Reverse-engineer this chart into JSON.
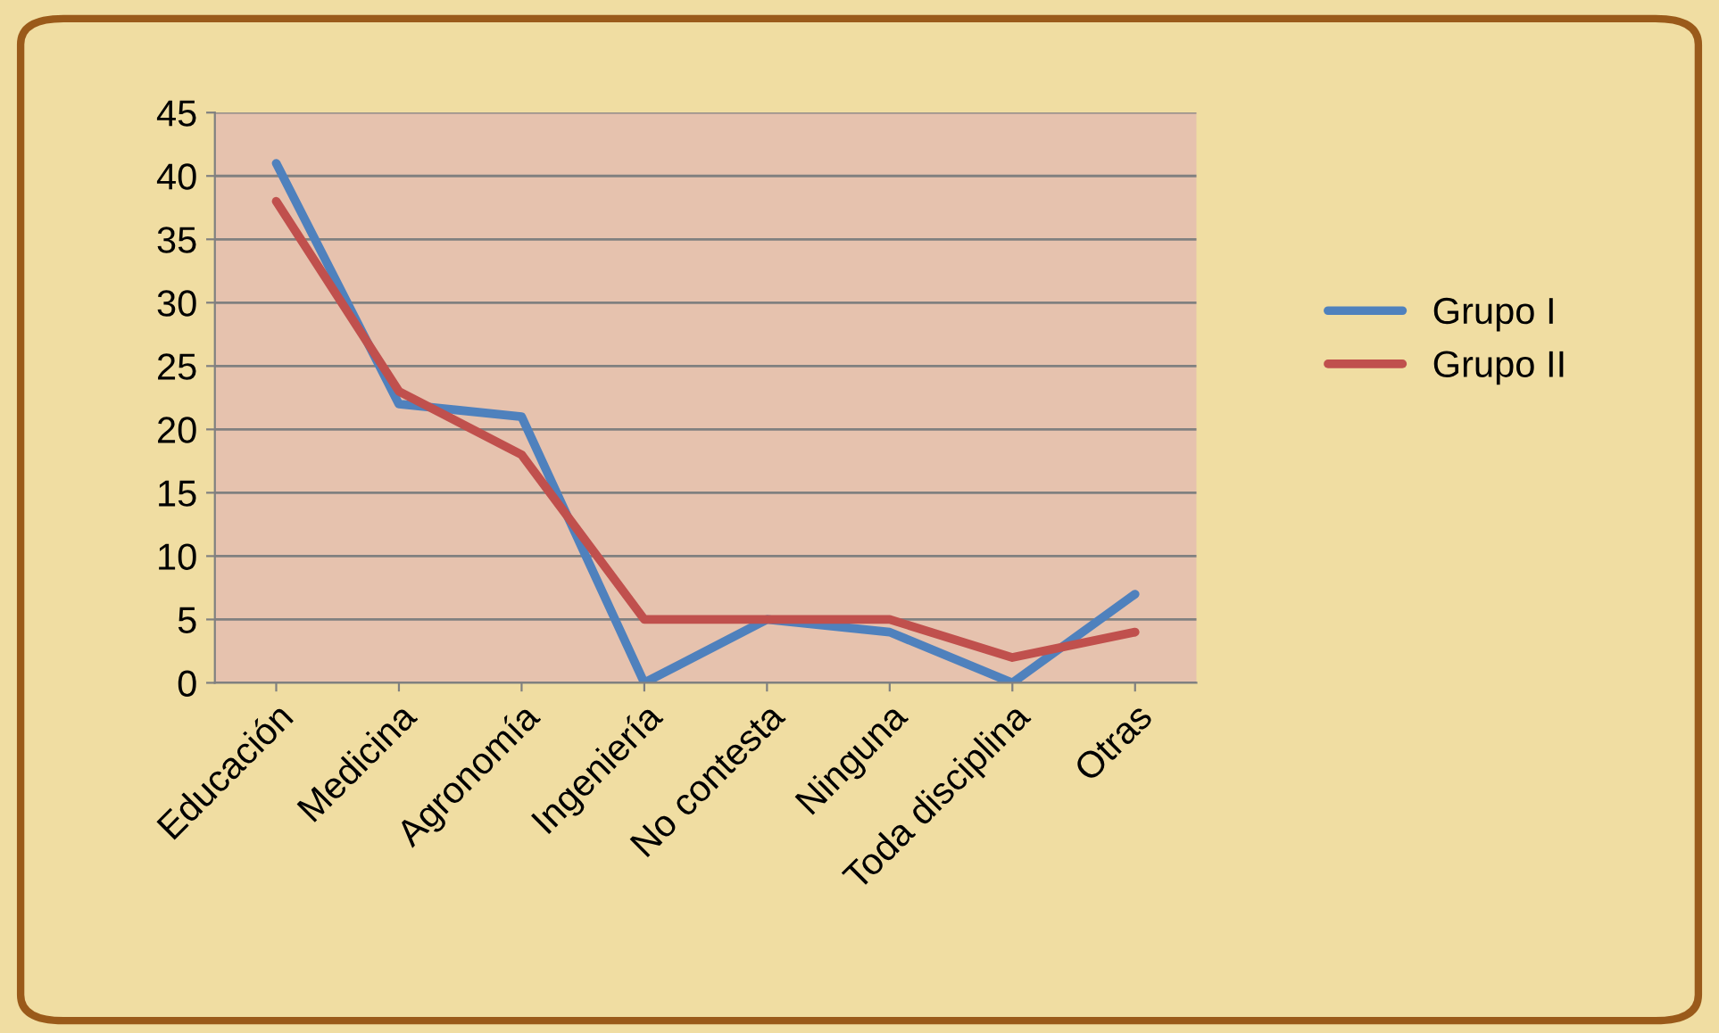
{
  "chart_data": {
    "type": "line",
    "categories": [
      "Educación",
      "Medicina",
      "Agronomía",
      "Ingeniería",
      "No contesta",
      "Ninguna",
      "Toda disciplina",
      "Otras"
    ],
    "series": [
      {
        "name": "Grupo I",
        "color": "#4f81bd",
        "values": [
          41,
          22,
          21,
          0,
          5,
          4,
          0,
          7
        ]
      },
      {
        "name": "Grupo II",
        "color": "#c0504d",
        "values": [
          38,
          23,
          18,
          5,
          5,
          5,
          2,
          4
        ]
      }
    ],
    "ylim": [
      0,
      45
    ],
    "yticks": [
      0,
      5,
      10,
      15,
      20,
      25,
      30,
      35,
      40,
      45
    ],
    "grid": "y",
    "legend": "right",
    "marker": "none",
    "line_style": "solid"
  }
}
